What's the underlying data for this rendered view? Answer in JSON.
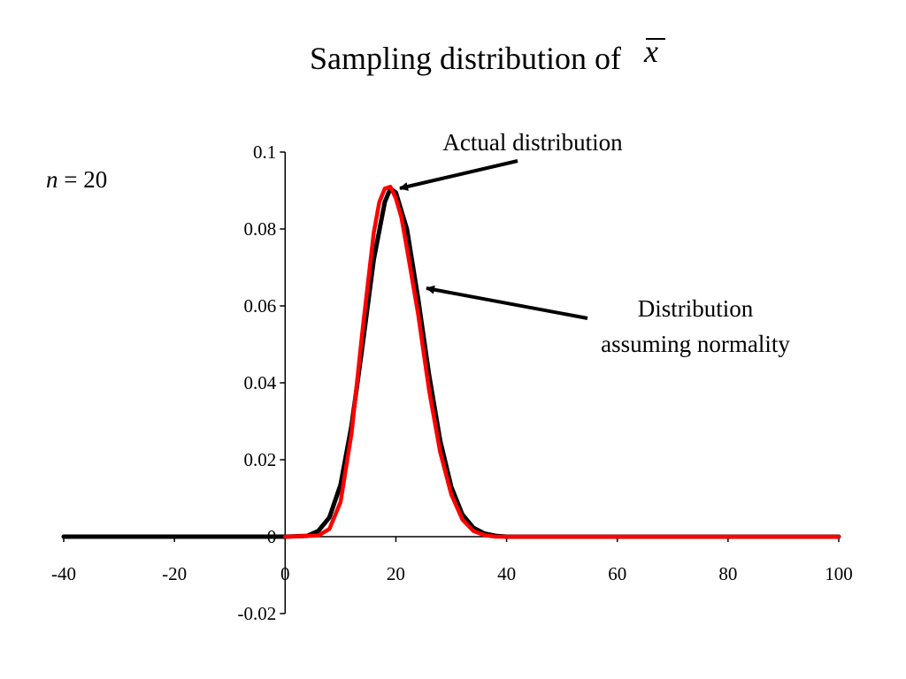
{
  "chart_data": {
    "type": "line",
    "title": "Sampling distribution of",
    "title_symbol": "x",
    "xlabel": "",
    "ylabel": "",
    "xlim": [
      -40,
      100
    ],
    "ylim": [
      -0.02,
      0.1
    ],
    "x_ticks": [
      "-40",
      "-20",
      "0",
      "20",
      "40",
      "60",
      "80",
      "100"
    ],
    "y_ticks": [
      "0.1",
      "0.08",
      "0.06",
      "0.04",
      "0.02",
      "0",
      "-0.02"
    ],
    "grid": false,
    "legend": "none",
    "sample_size_label": {
      "italic": "n",
      "rest": " = 20"
    },
    "annotations": [
      {
        "line1": "Actual distribution",
        "line2": ""
      },
      {
        "line1": "Distribution",
        "line2": "assuming normality"
      }
    ],
    "series": [
      {
        "color": "#000000",
        "x": [
          -40,
          0,
          4,
          6,
          8,
          10,
          12,
          14,
          16,
          18,
          19,
          20,
          22,
          24,
          26,
          28,
          30,
          32,
          34,
          36,
          38,
          40,
          100
        ],
        "y": [
          0,
          0,
          0.0002,
          0.0015,
          0.005,
          0.0135,
          0.029,
          0.05,
          0.072,
          0.087,
          0.0905,
          0.0895,
          0.08,
          0.062,
          0.042,
          0.025,
          0.013,
          0.0058,
          0.0023,
          0.0008,
          0.0002,
          0,
          0
        ]
      },
      {
        "color": "#ff0000",
        "x": [
          0,
          6,
          8,
          10,
          12,
          14,
          16,
          17,
          18,
          19,
          20,
          21,
          22,
          24,
          26,
          28,
          30,
          32,
          34,
          36,
          38,
          100
        ],
        "y": [
          0,
          0.0003,
          0.002,
          0.009,
          0.027,
          0.054,
          0.079,
          0.087,
          0.0905,
          0.091,
          0.088,
          0.083,
          0.075,
          0.058,
          0.038,
          0.022,
          0.011,
          0.0045,
          0.0015,
          0.0004,
          0,
          0
        ]
      }
    ]
  }
}
